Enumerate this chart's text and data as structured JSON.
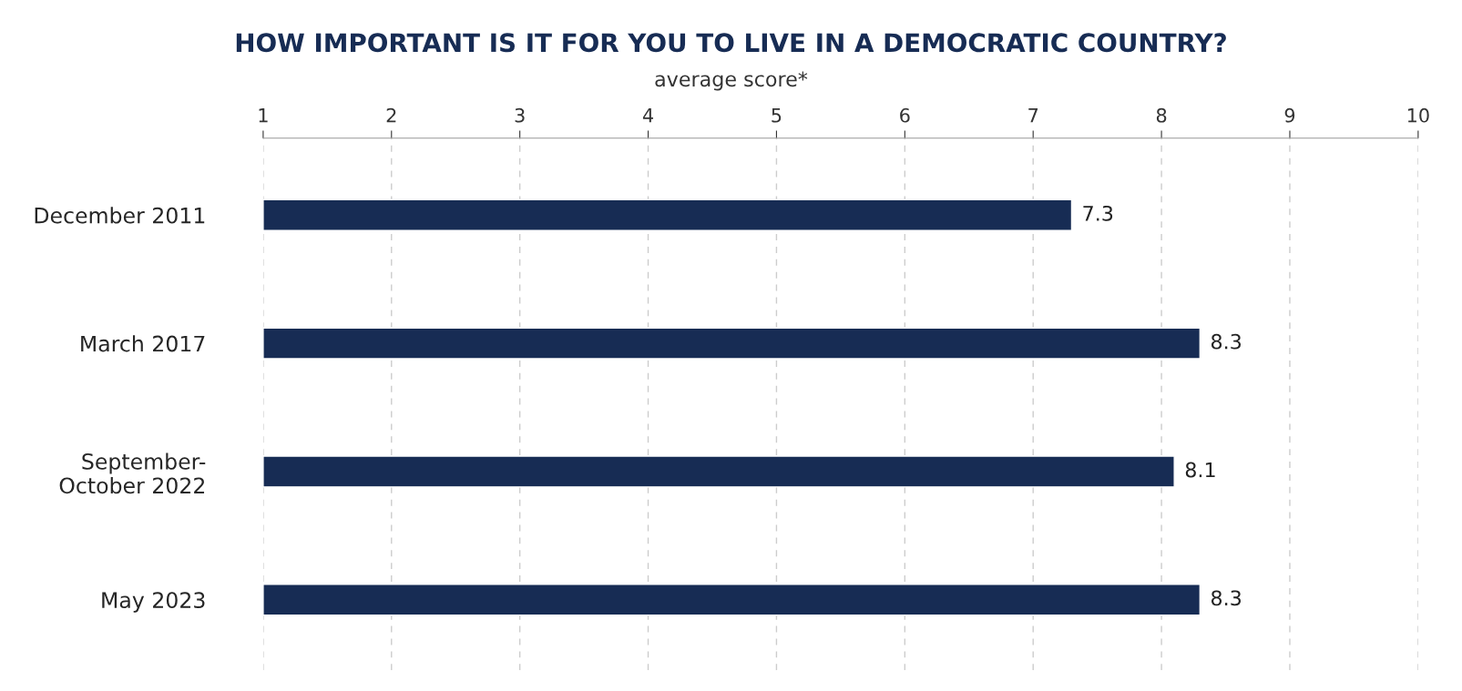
{
  "chart_data": {
    "type": "bar",
    "orientation": "horizontal",
    "title": "HOW IMPORTANT IS IT FOR YOU TO LIVE IN A DEMOCRATIC COUNTRY?",
    "subtitle": "average score*",
    "categories": [
      "December 2011",
      "March 2017",
      "September-\nOctober 2022",
      "May 2023"
    ],
    "values": [
      7.3,
      8.3,
      8.1,
      8.3
    ],
    "color": "#172c54",
    "xlim": [
      1,
      10
    ],
    "xticks": [
      1,
      2,
      3,
      4,
      5,
      6,
      7,
      8,
      9,
      10
    ],
    "grid": "x",
    "data_labels": true
  }
}
